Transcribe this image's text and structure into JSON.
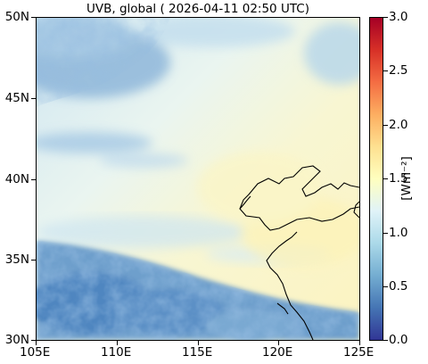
{
  "title": "UVB, global ( 2026-04-11 02:50 UTC)",
  "axes": {
    "lon_ticks": [
      "105E",
      "110E",
      "115E",
      "120E",
      "125E"
    ],
    "lat_ticks": [
      "50N",
      "45N",
      "40N",
      "35N",
      "30N"
    ],
    "lon_range": [
      105,
      125
    ],
    "lat_range": [
      30,
      50
    ]
  },
  "colorbar": {
    "label": "[Wm⁻²]",
    "ticks": [
      "3.0",
      "2.5",
      "2.0",
      "1.5",
      "1.0",
      "0.5",
      "0.0"
    ],
    "range": [
      0,
      3
    ],
    "colormap": "RdYlBu_r",
    "stops": [
      "#313695",
      "#4575b4",
      "#74add1",
      "#abd9e9",
      "#e0f3f8",
      "#ffffbf",
      "#fee090",
      "#fdae61",
      "#f46d43",
      "#d73027",
      "#a50026"
    ]
  },
  "field_colors": {
    "clear_sky": "#fdf7c8",
    "cloud_light": "#d8ecf5",
    "cloud_heavy": "#4f86c0"
  },
  "coastline_color": "#000000"
}
